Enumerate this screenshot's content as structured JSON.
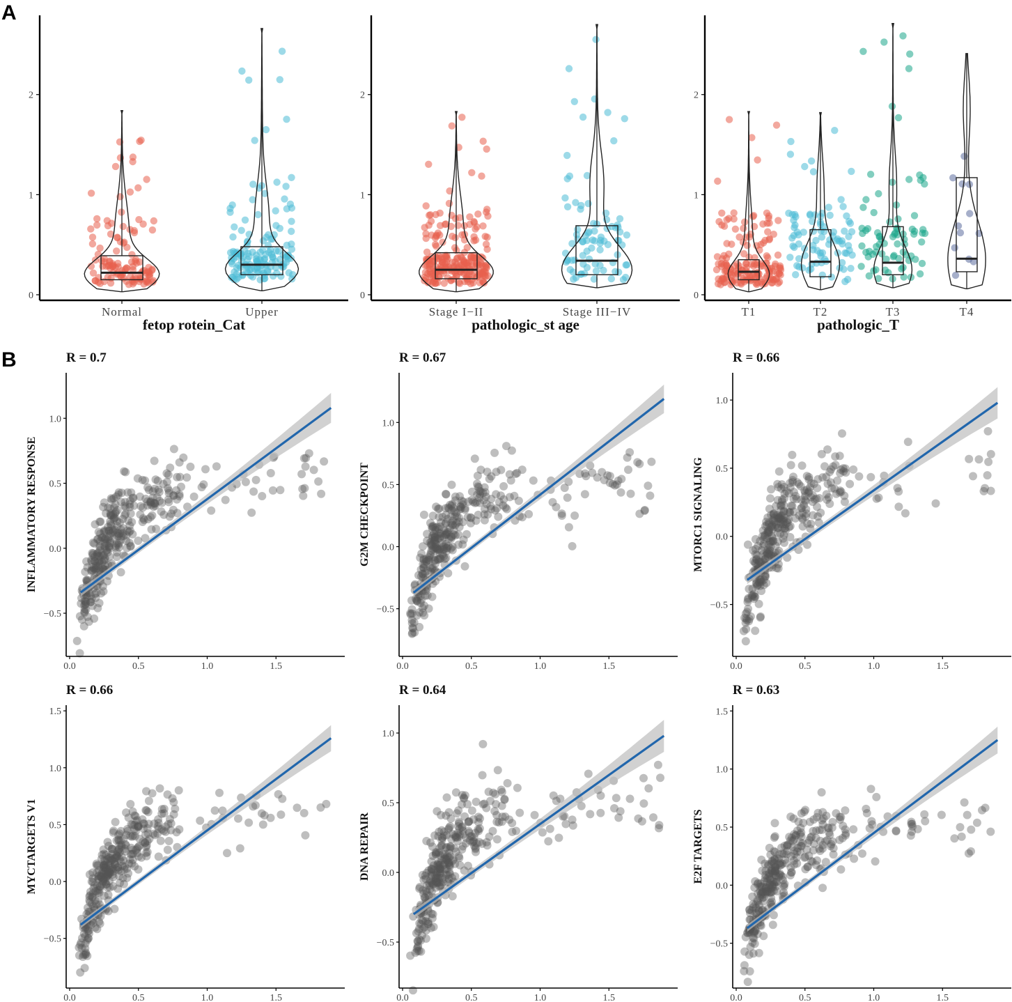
{
  "panels": {
    "a": "A",
    "b": "B"
  },
  "colors": {
    "red": "#E8604F",
    "cyan": "#4DBBD5",
    "teal": "#1BA58A",
    "navy": "#5C6E9E",
    "point_gray": "#555555",
    "fit_line": "#2166AC",
    "ci_band": "#BDBDBD"
  },
  "chart_data": [
    {
      "id": "violin-afp",
      "type": "violin-box",
      "title": "",
      "xlabel": "fetop rotein_Cat",
      "ylabel": "",
      "ylim": [
        0,
        2.75
      ],
      "yticks": [
        0,
        1,
        2
      ],
      "groups": [
        {
          "name": "Normal",
          "color": "red",
          "n": 120,
          "min": 0.03,
          "q1": 0.15,
          "median": 0.22,
          "q3": 0.39,
          "max": 1.84,
          "mode": 0.2
        },
        {
          "name": "Upper",
          "color": "cyan",
          "n": 150,
          "min": 0.04,
          "q1": 0.2,
          "median": 0.3,
          "q3": 0.48,
          "max": 2.66,
          "mode": 0.25
        }
      ]
    },
    {
      "id": "violin-stage",
      "type": "violin-box",
      "title": "",
      "xlabel": "pathologic_st    age",
      "ylabel": "",
      "ylim": [
        0,
        2.75
      ],
      "yticks": [
        0,
        1,
        2
      ],
      "groups": [
        {
          "name": "Stage I−II",
          "color": "red",
          "n": 240,
          "min": 0.03,
          "q1": 0.16,
          "median": 0.25,
          "q3": 0.42,
          "max": 1.83,
          "mode": 0.22
        },
        {
          "name": "Stage III−IV",
          "color": "cyan",
          "n": 85,
          "min": 0.07,
          "q1": 0.2,
          "median": 0.34,
          "q3": 0.69,
          "max": 2.7,
          "mode": 0.25
        }
      ]
    },
    {
      "id": "violin-t",
      "type": "violin-box",
      "title": "",
      "xlabel": "pathologic_T",
      "ylabel": "",
      "ylim": [
        0,
        2.75
      ],
      "yticks": [
        0,
        1,
        2
      ],
      "groups": [
        {
          "name": "T1",
          "color": "red",
          "n": 170,
          "min": 0.03,
          "q1": 0.15,
          "median": 0.23,
          "q3": 0.35,
          "max": 1.83,
          "mode": 0.2
        },
        {
          "name": "T2",
          "color": "cyan",
          "n": 90,
          "min": 0.05,
          "q1": 0.18,
          "median": 0.33,
          "q3": 0.65,
          "max": 1.82,
          "mode": 0.3
        },
        {
          "name": "T3",
          "color": "teal",
          "n": 80,
          "min": 0.07,
          "q1": 0.2,
          "median": 0.32,
          "q3": 0.68,
          "max": 2.71,
          "mode": 0.25
        },
        {
          "name": "T4",
          "color": "navy",
          "n": 12,
          "min": 0.06,
          "q1": 0.23,
          "median": 0.36,
          "q3": 1.17,
          "max": 2.41,
          "mode": 0.35
        }
      ]
    },
    {
      "id": "scatter-inflammatory",
      "type": "scatter",
      "title": "R = 0.7",
      "xlabel": "",
      "ylabel": "INFLAMMATORY RESPONSE",
      "xlim": [
        0,
        2.0
      ],
      "ylim": [
        -0.8,
        1.35
      ],
      "xticks": [
        0.0,
        0.5,
        1.0,
        1.5
      ],
      "yticks": [
        -0.5,
        0.0,
        0.5,
        1.0
      ],
      "xtick_labels": [
        "0.0",
        "0.5",
        "1.0",
        "1.5"
      ],
      "ytick_labels": [
        "−0.5",
        "0.0",
        "0.5",
        "1.0"
      ],
      "fit": {
        "x": [
          0.08,
          1.9
        ],
        "y": [
          -0.34,
          1.08
        ]
      },
      "ymin_cluster": -0.72,
      "plateau": 0.45,
      "n_points": 350
    },
    {
      "id": "scatter-g2m",
      "type": "scatter",
      "title": "R = 0.67",
      "xlabel": "",
      "ylabel": "G2M CHECKPOINT",
      "xlim": [
        0,
        2.0
      ],
      "ylim": [
        -0.85,
        1.4
      ],
      "xticks": [
        0.0,
        0.5,
        1.0,
        1.5
      ],
      "yticks": [
        -0.5,
        0.0,
        0.5,
        1.0
      ],
      "xtick_labels": [
        "0.0",
        "0.5",
        "1.0",
        "1.5"
      ],
      "ytick_labels": [
        "−0.5",
        "0.0",
        "0.5",
        "1.0"
      ],
      "fit": {
        "x": [
          0.08,
          1.9
        ],
        "y": [
          -0.37,
          1.19
        ]
      },
      "ymin_cluster": -0.75,
      "plateau": 0.48,
      "n_points": 350
    },
    {
      "id": "scatter-mtorc1",
      "type": "scatter",
      "title": "R = 0.66",
      "xlabel": "",
      "ylabel": "MTORC1 SIGNALING",
      "xlim": [
        0,
        2.0
      ],
      "ylim": [
        -0.85,
        1.2
      ],
      "xticks": [
        0.0,
        0.5,
        1.0,
        1.5
      ],
      "yticks": [
        -0.5,
        0.0,
        0.5,
        1.0
      ],
      "xtick_labels": [
        "0.0",
        "0.5",
        "1.0",
        "1.5"
      ],
      "ytick_labels": [
        "−0.5",
        "0.0",
        "0.5",
        "1.0"
      ],
      "fit": {
        "x": [
          0.08,
          1.9
        ],
        "y": [
          -0.32,
          0.98
        ]
      },
      "ymin_cluster": -0.72,
      "plateau": 0.42,
      "n_points": 350
    },
    {
      "id": "scatter-myc",
      "type": "scatter",
      "title": "R = 0.66",
      "xlabel": "",
      "ylabel": "MYCTARGETS V1",
      "xlim": [
        0,
        2.0
      ],
      "ylim": [
        -0.9,
        1.55
      ],
      "xticks": [
        0.0,
        0.5,
        1.0,
        1.5
      ],
      "yticks": [
        -0.5,
        0.0,
        0.5,
        1.0,
        1.5
      ],
      "xtick_labels": [
        "0.0",
        "0.5",
        "1.0",
        "1.5"
      ],
      "ytick_labels": [
        "−0.5",
        "0.0",
        "0.5",
        "1.0",
        "1.5"
      ],
      "fit": {
        "x": [
          0.08,
          1.9
        ],
        "y": [
          -0.38,
          1.26
        ]
      },
      "ymin_cluster": -0.8,
      "plateau": 0.55,
      "n_points": 350
    },
    {
      "id": "scatter-dna",
      "type": "scatter",
      "title": "R = 0.64",
      "xlabel": "",
      "ylabel": "DNA REPAIR",
      "xlim": [
        0,
        2.0
      ],
      "ylim": [
        -0.8,
        1.2
      ],
      "xticks": [
        0.0,
        0.5,
        1.0,
        1.5
      ],
      "yticks": [
        -0.5,
        0.0,
        0.5,
        1.0
      ],
      "xtick_labels": [
        "0.0",
        "0.5",
        "1.0",
        "1.5"
      ],
      "ytick_labels": [
        "−0.5",
        "0.0",
        "0.5",
        "1.0"
      ],
      "fit": {
        "x": [
          0.08,
          1.9
        ],
        "y": [
          -0.3,
          0.98
        ]
      },
      "ymin_cluster": -0.7,
      "plateau": 0.45,
      "n_points": 350
    },
    {
      "id": "scatter-e2f",
      "type": "scatter",
      "title": "R = 0.63",
      "xlabel": "",
      "ylabel": "E2F TARGETS",
      "xlim": [
        0,
        2.0
      ],
      "ylim": [
        -0.85,
        1.55
      ],
      "xticks": [
        0.0,
        0.5,
        1.0,
        1.5
      ],
      "yticks": [
        -0.5,
        0.0,
        0.5,
        1.0,
        1.5
      ],
      "xtick_labels": [
        "0.0",
        "0.5",
        "1.0",
        "1.5"
      ],
      "ytick_labels": [
        "−0.5",
        "0.0",
        "0.5",
        "1.0",
        "1.5"
      ],
      "fit": {
        "x": [
          0.08,
          1.9
        ],
        "y": [
          -0.37,
          1.25
        ]
      },
      "ymin_cluster": -0.75,
      "plateau": 0.5,
      "n_points": 350
    }
  ]
}
